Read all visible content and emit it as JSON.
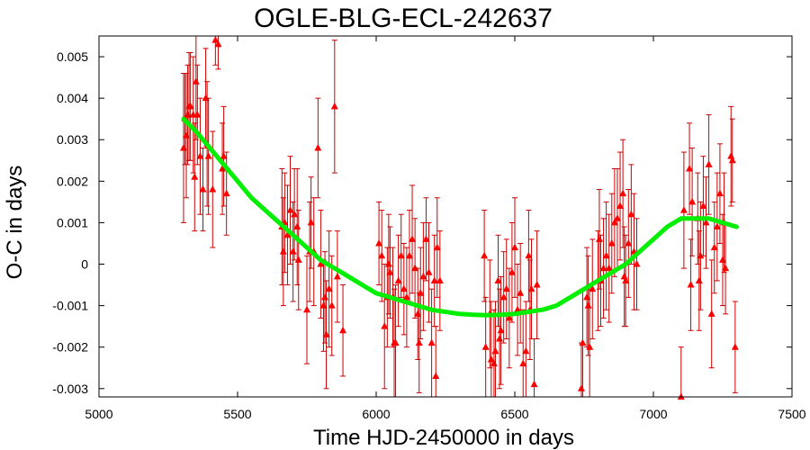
{
  "chart_data": {
    "type": "scatter",
    "title": "OGLE-BLG-ECL-242637",
    "xlabel": "Time HJD-2450000 in days",
    "ylabel": "O-C in days",
    "xlim": [
      5000,
      7500
    ],
    "ylim": [
      -0.0032,
      0.0055
    ],
    "x_ticks": [
      5000,
      5500,
      6000,
      6500,
      7000,
      7500
    ],
    "y_ticks": [
      -0.003,
      -0.002,
      -0.001,
      0,
      0.001,
      0.002,
      0.003,
      0.004,
      0.005
    ],
    "y_tick_labels": [
      "-0.003",
      "-0.002",
      "-0.001",
      "0",
      "0.001",
      "0.002",
      "0.003",
      "0.004",
      "0.005"
    ],
    "grid": false,
    "legend": "none",
    "colors": {
      "points": "#ff0000",
      "errorbars": "#cc0000",
      "fit": "#00ee00"
    },
    "series": [
      {
        "kind": "points_with_errors",
        "points": [
          [
            5305,
            0.0028,
            0.0018
          ],
          [
            5310,
            0.0035,
            0.0011
          ],
          [
            5315,
            0.0031,
            0.0015
          ],
          [
            5320,
            0.0036,
            0.0012
          ],
          [
            5325,
            0.0038,
            0.0013
          ],
          [
            5330,
            0.0038,
            0.0013
          ],
          [
            5340,
            0.0036,
            0.0014
          ],
          [
            5345,
            0.0021,
            0.0013
          ],
          [
            5350,
            0.0044,
            0.0014
          ],
          [
            5355,
            0.0036,
            0.0012
          ],
          [
            5365,
            0.0026,
            0.0014
          ],
          [
            5375,
            0.0018,
            0.001
          ],
          [
            5385,
            0.004,
            0.0012
          ],
          [
            5390,
            0.0029,
            0.0015
          ],
          [
            5395,
            0.0026,
            0.0014
          ],
          [
            5410,
            0.0018,
            0.0014
          ],
          [
            5420,
            0.0054,
            0.0006
          ],
          [
            5430,
            0.0053,
            0.0006
          ],
          [
            5445,
            0.0023,
            0.0011
          ],
          [
            5450,
            0.0026,
            0.0012
          ],
          [
            5460,
            0.0017,
            0.001
          ],
          [
            5660,
            0.0009,
            0.0014
          ],
          [
            5665,
            0.0003,
            0.0013
          ],
          [
            5670,
            0.001,
            0.0012
          ],
          [
            5680,
            0.0007,
            0.0012
          ],
          [
            5690,
            0.0013,
            0.0013
          ],
          [
            5700,
            0.0003,
            0.0012
          ],
          [
            5705,
            0.0012,
            0.0011
          ],
          [
            5715,
            0.0009,
            0.0014
          ],
          [
            5720,
            0.0001,
            0.0012
          ],
          [
            5750,
            -0.0011,
            0.0013
          ],
          [
            5760,
            0.0003,
            0.0012
          ],
          [
            5765,
            0.001,
            0.0011
          ],
          [
            5775,
            0.0003,
            0.0013
          ],
          [
            5790,
            0.0028,
            0.0012
          ],
          [
            5800,
            0.0,
            0.0013
          ],
          [
            5810,
            -0.001,
            0.0011
          ],
          [
            5815,
            -0.0008,
            0.0011
          ],
          [
            5820,
            -0.0017,
            0.0013
          ],
          [
            5830,
            -0.0006,
            0.0014
          ],
          [
            5840,
            -0.001,
            0.0012
          ],
          [
            5850,
            0.0038,
            0.0016
          ],
          [
            5860,
            -0.0003,
            0.0011
          ],
          [
            5880,
            -0.0016,
            0.0011
          ],
          [
            6010,
            0.0005,
            0.001
          ],
          [
            6020,
            0.0002,
            0.0011
          ],
          [
            6030,
            -0.0015,
            0.0015
          ],
          [
            6040,
            -0.0008,
            0.0012
          ],
          [
            6045,
            0.0,
            0.0012
          ],
          [
            6050,
            -0.0002,
            0.0011
          ],
          [
            6060,
            -0.0008,
            0.0012
          ],
          [
            6065,
            -0.0019,
            0.0013
          ],
          [
            6070,
            -0.0019,
            0.0014
          ],
          [
            6080,
            -0.0004,
            0.0011
          ],
          [
            6090,
            0.0002,
            0.001
          ],
          [
            6100,
            -0.0006,
            0.0011
          ],
          [
            6110,
            -0.0008,
            0.0012
          ],
          [
            6120,
            0.0002,
            0.0011
          ],
          [
            6130,
            0.0006,
            0.0013
          ],
          [
            6140,
            -0.0001,
            0.0012
          ],
          [
            6150,
            -0.0012,
            0.0011
          ],
          [
            6155,
            -0.0019,
            0.0012
          ],
          [
            6160,
            -0.0007,
            0.0011
          ],
          [
            6170,
            -0.0003,
            0.0013
          ],
          [
            6180,
            0.0006,
            0.001
          ],
          [
            6190,
            -0.0002,
            0.0012
          ],
          [
            6200,
            -0.0019,
            0.0013
          ],
          [
            6210,
            -0.0004,
            0.0011
          ],
          [
            6215,
            -0.0027,
            0.0012
          ],
          [
            6220,
            0.0004,
            0.0012
          ],
          [
            6230,
            -0.0004,
            0.0012
          ],
          [
            6390,
            0.0002,
            0.0011
          ],
          [
            6395,
            -0.002,
            0.0012
          ],
          [
            6410,
            -0.0012,
            0.0013
          ],
          [
            6415,
            -0.0023,
            0.0014
          ],
          [
            6425,
            -0.0024,
            0.0013
          ],
          [
            6430,
            -0.0021,
            0.0012
          ],
          [
            6440,
            -0.0004,
            0.0011
          ],
          [
            6445,
            -0.0018,
            0.0012
          ],
          [
            6450,
            -0.0016,
            0.0013
          ],
          [
            6460,
            -0.0008,
            0.0011
          ],
          [
            6470,
            -0.0006,
            0.0012
          ],
          [
            6480,
            -0.0013,
            0.0012
          ],
          [
            6490,
            -0.0002,
            0.0012
          ],
          [
            6500,
            0.0004,
            0.0012
          ],
          [
            6510,
            -0.0011,
            0.0011
          ],
          [
            6520,
            -0.0007,
            0.0012
          ],
          [
            6530,
            -0.0024,
            0.0013
          ],
          [
            6540,
            -0.0021,
            0.0012
          ],
          [
            6550,
            0.0002,
            0.0011
          ],
          [
            6555,
            -0.0011,
            0.0012
          ],
          [
            6560,
            -0.0006,
            0.0012
          ],
          [
            6570,
            -0.0029,
            0.0011
          ],
          [
            6580,
            -0.0005,
            0.0013
          ],
          [
            6740,
            -0.003,
            0.0011
          ],
          [
            6745,
            -0.0019,
            0.0013
          ],
          [
            6760,
            -0.0008,
            0.0012
          ],
          [
            6765,
            -0.001,
            0.0012
          ],
          [
            6770,
            -0.002,
            0.0014
          ],
          [
            6780,
            -0.0006,
            0.0012
          ],
          [
            6800,
            -0.0004,
            0.0012
          ],
          [
            6805,
            0.0006,
            0.0012
          ],
          [
            6810,
            -0.0004,
            0.0011
          ],
          [
            6820,
            -0.0001,
            0.0012
          ],
          [
            6830,
            0.0002,
            0.0013
          ],
          [
            6840,
            -0.0001,
            0.0013
          ],
          [
            6850,
            0.0005,
            0.0012
          ],
          [
            6860,
            0.001,
            0.0013
          ],
          [
            6870,
            0.0011,
            0.0012
          ],
          [
            6880,
            0.0014,
            0.0013
          ],
          [
            6890,
            0.0017,
            0.0013
          ],
          [
            6895,
            -0.0003,
            0.0012
          ],
          [
            6900,
            -0.0004,
            0.0011
          ],
          [
            6910,
            0.0005,
            0.0013
          ],
          [
            6920,
            0.0012,
            0.0012
          ],
          [
            6930,
            0.0003,
            0.0014
          ],
          [
            6940,
            0.0,
            0.0011
          ],
          [
            7100,
            -0.0032,
            0.0012
          ],
          [
            7110,
            0.0013,
            0.0014
          ],
          [
            7130,
            0.0023,
            0.0011
          ],
          [
            7135,
            -0.0005,
            0.0011
          ],
          [
            7140,
            0.0015,
            0.0013
          ],
          [
            7160,
            0.0011,
            0.0011
          ],
          [
            7165,
            -0.0004,
            0.0012
          ],
          [
            7170,
            0.0002,
            0.0013
          ],
          [
            7180,
            0.0014,
            0.0012
          ],
          [
            7190,
            0.001,
            0.0011
          ],
          [
            7200,
            0.0024,
            0.0012
          ],
          [
            7210,
            -0.0012,
            0.0013
          ],
          [
            7220,
            0.0004,
            0.0011
          ],
          [
            7230,
            0.0009,
            0.0013
          ],
          [
            7240,
            0.0017,
            0.0012
          ],
          [
            7250,
            0.0001,
            0.0011
          ],
          [
            7255,
            0.001,
            0.0012
          ],
          [
            7260,
            -0.0001,
            0.0011
          ],
          [
            7280,
            0.0026,
            0.0012
          ],
          [
            7285,
            0.0025,
            0.001
          ],
          [
            7295,
            -0.002,
            0.0011
          ]
        ]
      },
      {
        "kind": "fit_curve",
        "points": [
          [
            5305,
            0.0035
          ],
          [
            5350,
            0.0032
          ],
          [
            5400,
            0.0028
          ],
          [
            5450,
            0.0024
          ],
          [
            5500,
            0.002
          ],
          [
            5550,
            0.0016
          ],
          [
            5600,
            0.0013
          ],
          [
            5650,
            0.001
          ],
          [
            5700,
            0.0007
          ],
          [
            5750,
            0.0004
          ],
          [
            5800,
            0.0001
          ],
          [
            5850,
            -0.0001
          ],
          [
            5900,
            -0.0003
          ],
          [
            5950,
            -0.0005
          ],
          [
            6000,
            -0.0007
          ],
          [
            6050,
            -0.0008
          ],
          [
            6100,
            -0.0009
          ],
          [
            6150,
            -0.001
          ],
          [
            6200,
            -0.0011
          ],
          [
            6250,
            -0.00115
          ],
          [
            6300,
            -0.0012
          ],
          [
            6350,
            -0.00122
          ],
          [
            6400,
            -0.00123
          ],
          [
            6450,
            -0.00122
          ],
          [
            6500,
            -0.0012
          ],
          [
            6550,
            -0.00115
          ],
          [
            6600,
            -0.0011
          ],
          [
            6650,
            -0.001
          ],
          [
            6700,
            -0.0008
          ],
          [
            6750,
            -0.0006
          ],
          [
            6800,
            -0.0004
          ],
          [
            6850,
            -0.0002
          ],
          [
            6900,
            0.0
          ],
          [
            6950,
            0.0003
          ],
          [
            7000,
            0.0006
          ],
          [
            7050,
            0.0009
          ],
          [
            7100,
            0.0011
          ],
          [
            7150,
            0.0011
          ],
          [
            7200,
            0.0011
          ],
          [
            7250,
            0.001
          ],
          [
            7300,
            0.0009
          ]
        ]
      }
    ]
  }
}
